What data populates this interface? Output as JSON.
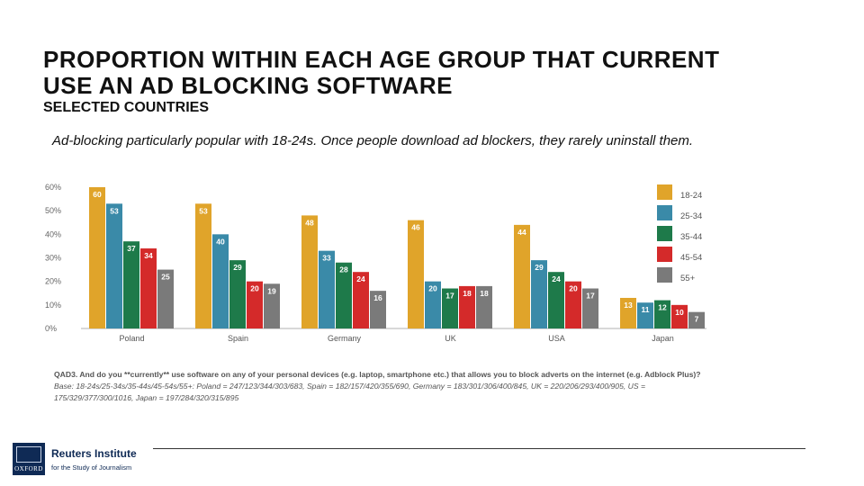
{
  "slide": {
    "title": "PROPORTION WITHIN EACH AGE GROUP THAT CURRENT USE AN AD BLOCKING SOFTWARE",
    "subtitle": "SELECTED COUNTRIES",
    "caption": "Ad-blocking particularly popular with 18-24s. Once people download ad blockers, they rarely uninstall them."
  },
  "chart_data": {
    "type": "bar",
    "categories": [
      "Poland",
      "Spain",
      "Germany",
      "UK",
      "USA",
      "Japan"
    ],
    "series": [
      {
        "name": "18-24",
        "color": "#e0a42a",
        "values": [
          60,
          53,
          48,
          46,
          44,
          13
        ]
      },
      {
        "name": "25-34",
        "color": "#3a8aa8",
        "values": [
          53,
          40,
          33,
          20,
          29,
          11
        ]
      },
      {
        "name": "35-44",
        "color": "#1e7a4a",
        "values": [
          37,
          29,
          28,
          17,
          24,
          12
        ]
      },
      {
        "name": "45-54",
        "color": "#d42a2a",
        "values": [
          34,
          20,
          24,
          18,
          20,
          10
        ]
      },
      {
        "name": "55+",
        "color": "#7a7a7a",
        "values": [
          25,
          19,
          16,
          18,
          17,
          7
        ]
      }
    ],
    "ylim": [
      0,
      60
    ],
    "yticks": [
      "0%",
      "10%",
      "20%",
      "30%",
      "40%",
      "50%",
      "60%"
    ],
    "legend_position": "right",
    "grid": false
  },
  "footnote": {
    "question": "QAD3. And do you **currently** use software on any of your personal devices (e.g. laptop, smartphone etc.) that allows you to block adverts on the internet (e.g. Adblock Plus)?",
    "base": "Base: 18-24s/25-34s/35-44s/45-54s/55+: Poland = 247/123/344/303/683, Spain = 182/157/420/355/690, Germany = 183/301/306/400/845, UK = 220/206/293/400/905, US = 175/329/377/300/1016, Japan = 197/284/320/315/895"
  },
  "logo": {
    "crest_text": "OXFORD",
    "name": "Reuters Institute",
    "tagline": "for the Study of Journalism"
  }
}
